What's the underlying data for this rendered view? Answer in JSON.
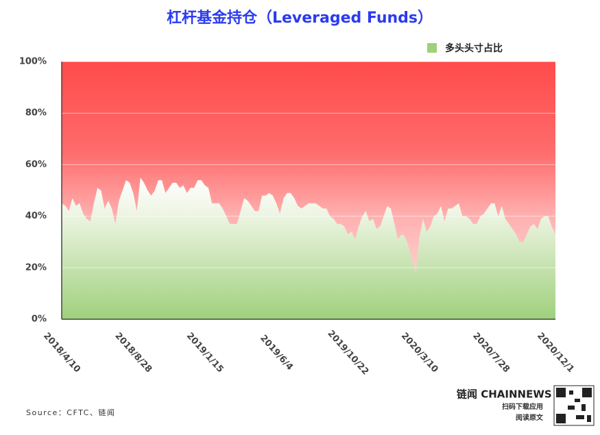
{
  "chart_data": {
    "type": "area",
    "title": "杠杆基金持仓（Leveraged Funds）",
    "categories": [
      "2018/4/10",
      null,
      null,
      null,
      null,
      null,
      null,
      null,
      null,
      null,
      null,
      null,
      null,
      null,
      null,
      null,
      null,
      null,
      null,
      null,
      "2018/8/28",
      null,
      null,
      null,
      null,
      null,
      null,
      null,
      null,
      null,
      null,
      null,
      null,
      null,
      null,
      null,
      null,
      null,
      null,
      null,
      "2019/1/15",
      null,
      null,
      null,
      null,
      null,
      null,
      null,
      null,
      null,
      null,
      null,
      null,
      null,
      null,
      null,
      null,
      null,
      null,
      null,
      "2019/6/4",
      null,
      null,
      null,
      null,
      null,
      null,
      null,
      null,
      null,
      null,
      null,
      null,
      null,
      null,
      null,
      null,
      null,
      null,
      null,
      "2019/10/22",
      null,
      null,
      null,
      null,
      null,
      null,
      null,
      null,
      null,
      null,
      null,
      null,
      null,
      null,
      null,
      null,
      null,
      null,
      null,
      "2020/3/10",
      null,
      null,
      null,
      null,
      null,
      null,
      null,
      null,
      null,
      null,
      null,
      null,
      null,
      null,
      null,
      null,
      null,
      null,
      null,
      "2020/7/28",
      null,
      null,
      null,
      null,
      null,
      null,
      null,
      null,
      null,
      null,
      null,
      null,
      null,
      null,
      null,
      null,
      null,
      "2020/12/1"
    ],
    "series": [
      {
        "name": "多头头寸占比",
        "color": "#9fd07c",
        "values": [
          45,
          44,
          42,
          47,
          44,
          45,
          41,
          39,
          38,
          45,
          51,
          50,
          43,
          46,
          43,
          37,
          46,
          50,
          54,
          53,
          49,
          42,
          55,
          53,
          50,
          48,
          50,
          54,
          54,
          49,
          51,
          53,
          53,
          51,
          52,
          49,
          51,
          51,
          54,
          54,
          52,
          51,
          45,
          45,
          45,
          43,
          40,
          37,
          37,
          37,
          42,
          47,
          46,
          44,
          42,
          42,
          48,
          48,
          49,
          48,
          45,
          41,
          47,
          49,
          49,
          47,
          44,
          43,
          44,
          45,
          45,
          45,
          44,
          43,
          43,
          40,
          39,
          37,
          37,
          36,
          33,
          34,
          31,
          36,
          40,
          42,
          38,
          39,
          35,
          36,
          40,
          44,
          43,
          37,
          31,
          33,
          32,
          28,
          23,
          18,
          32,
          39,
          34,
          36,
          40,
          41,
          44,
          38,
          43,
          43,
          44,
          45,
          40,
          40,
          39,
          37,
          37,
          40,
          41,
          43,
          45,
          45,
          40,
          44,
          39,
          37,
          35,
          33,
          30,
          30,
          33,
          36,
          37,
          35,
          39,
          40,
          40,
          36,
          33
        ]
      }
    ],
    "ylim": [
      0,
      100
    ],
    "yticks": [
      {
        "value": 0,
        "label": "0%"
      },
      {
        "value": 20,
        "label": "20%"
      },
      {
        "value": 40,
        "label": "40%"
      },
      {
        "value": 60,
        "label": "60%"
      },
      {
        "value": 80,
        "label": "80%"
      },
      {
        "value": 100,
        "label": "100%"
      }
    ],
    "grid": true,
    "legend": "top-right"
  },
  "footer": {
    "source": "Source：CFTC、链闻",
    "brand": "链闻 CHAINNEWS",
    "qr_line1": "扫码下载应用",
    "qr_line2": "阅读原文"
  }
}
